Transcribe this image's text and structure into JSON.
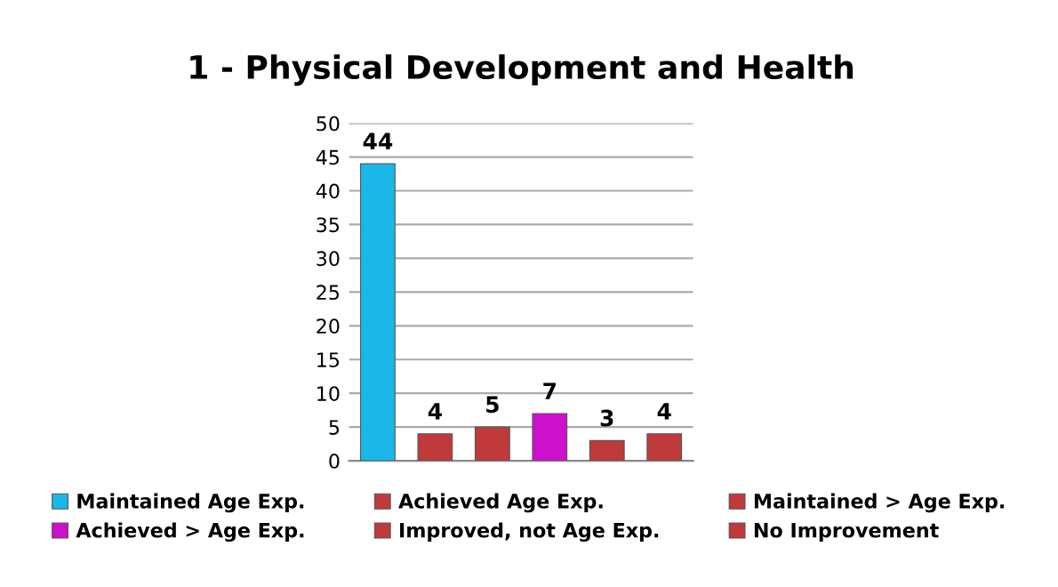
{
  "chart_data": {
    "type": "bar",
    "title": "1 - Physical Development and Health",
    "categories": [
      null,
      null,
      null,
      null,
      null,
      null
    ],
    "series": [
      {
        "name": "Maintained Age Exp.",
        "color": "#1ab8e8",
        "values": [
          44,
          null,
          null,
          null,
          null,
          null
        ]
      },
      {
        "name": "Achieved Age Exp.",
        "color": "#c0393b",
        "values": [
          null,
          4,
          null,
          null,
          null,
          null
        ]
      },
      {
        "name": "Maintained > Age Exp.",
        "color": "#c0393b",
        "values": [
          null,
          null,
          5,
          null,
          null,
          null
        ]
      },
      {
        "name": "Achieved > Age Exp.",
        "color": "#cc10cc",
        "values": [
          null,
          null,
          null,
          7,
          null,
          null
        ]
      },
      {
        "name": "Improved, not Age Exp.",
        "color": "#c0393b",
        "values": [
          null,
          null,
          null,
          null,
          3,
          null
        ]
      },
      {
        "name": "No Improvement",
        "color": "#c0393b",
        "values": [
          null,
          null,
          null,
          null,
          null,
          4
        ]
      }
    ],
    "ylim": [
      0,
      50
    ],
    "yticks": [
      0,
      5,
      10,
      15,
      20,
      25,
      30,
      35,
      40,
      45,
      50
    ],
    "grid": "y",
    "legend": "bottom",
    "data_labels": true
  }
}
